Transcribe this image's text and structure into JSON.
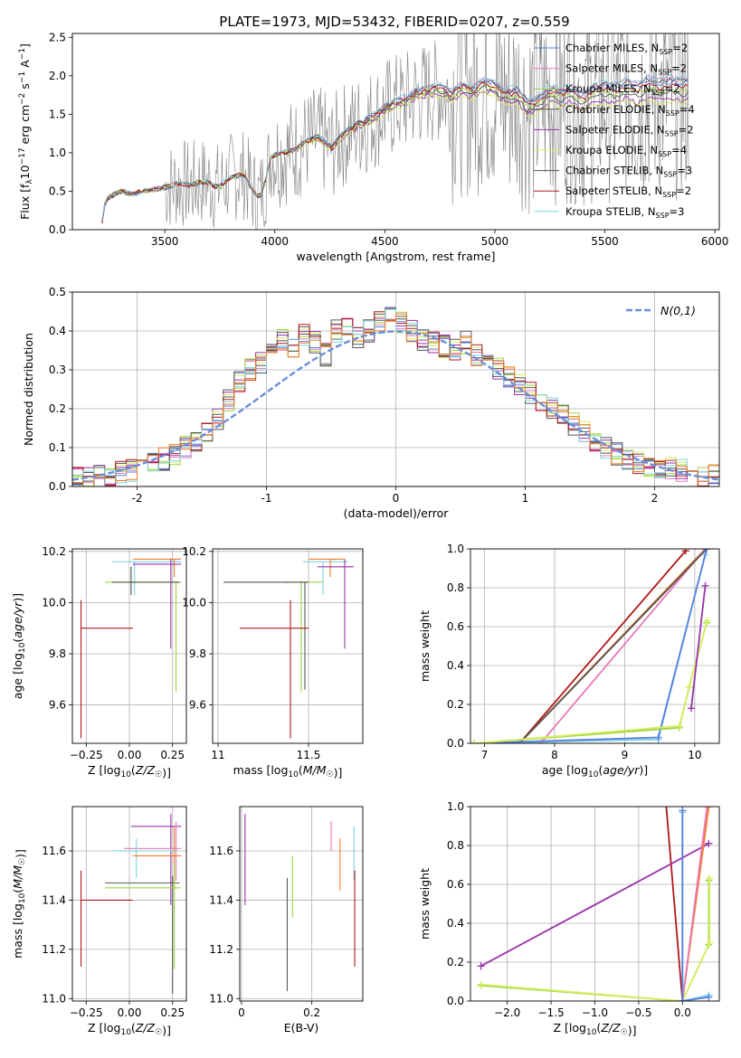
{
  "figure": {
    "title": "PLATE=1973, MJD=53432, FIBERID=0207, z=0.559"
  },
  "colors": {
    "cm": "#5b7ee0",
    "sm": "#e87ab9",
    "km": "#9cd53c",
    "ce": "#555555",
    "se": "#9932a8",
    "ke": "#d8ee62",
    "cs": "#555555",
    "ss": "#b01818",
    "ks": "#7fd2e0",
    "obs": "#808080",
    "orange": "#f07a28",
    "normal": "#6a8fda"
  },
  "chart_data": [
    {
      "id": "spectrum",
      "type": "line",
      "xlabel": "wavelength [Angstrom, rest frame]",
      "ylabel": "Flux [f_λ 10^-17 erg cm^-2 s^-1 A^-1]",
      "xlim": [
        3080,
        6020
      ],
      "ylim": [
        0,
        2.55
      ],
      "xticks": [
        3500,
        4000,
        4500,
        5000,
        5500,
        6000
      ],
      "yticks": [
        0.0,
        0.5,
        1.0,
        1.5,
        2.0,
        2.5
      ],
      "model_continuum": [
        [
          3210,
          0.02
        ],
        [
          3230,
          0.38
        ],
        [
          3260,
          0.44
        ],
        [
          3300,
          0.5
        ],
        [
          3350,
          0.46
        ],
        [
          3400,
          0.5
        ],
        [
          3450,
          0.52
        ],
        [
          3500,
          0.55
        ],
        [
          3560,
          0.6
        ],
        [
          3620,
          0.58
        ],
        [
          3680,
          0.63
        ],
        [
          3740,
          0.55
        ],
        [
          3800,
          0.68
        ],
        [
          3860,
          0.72
        ],
        [
          3900,
          0.5
        ],
        [
          3930,
          0.42
        ],
        [
          3960,
          0.65
        ],
        [
          3980,
          0.95
        ],
        [
          4020,
          0.98
        ],
        [
          4100,
          1.05
        ],
        [
          4150,
          1.15
        ],
        [
          4200,
          1.18
        ],
        [
          4260,
          1.05
        ],
        [
          4300,
          1.2
        ],
        [
          4350,
          1.3
        ],
        [
          4400,
          1.38
        ],
        [
          4450,
          1.45
        ],
        [
          4500,
          1.55
        ],
        [
          4550,
          1.62
        ],
        [
          4600,
          1.66
        ],
        [
          4650,
          1.75
        ],
        [
          4700,
          1.78
        ],
        [
          4750,
          1.8
        ],
        [
          4800,
          1.7
        ],
        [
          4850,
          1.82
        ],
        [
          4900,
          1.75
        ],
        [
          4950,
          1.85
        ],
        [
          5000,
          1.8
        ],
        [
          5050,
          1.7
        ],
        [
          5100,
          1.72
        ],
        [
          5150,
          1.55
        ],
        [
          5200,
          1.6
        ],
        [
          5250,
          1.72
        ],
        [
          5300,
          1.68
        ],
        [
          5350,
          1.72
        ],
        [
          5400,
          1.62
        ],
        [
          5450,
          1.72
        ],
        [
          5500,
          1.75
        ],
        [
          5550,
          1.72
        ],
        [
          5600,
          1.78
        ],
        [
          5650,
          1.72
        ],
        [
          5700,
          1.8
        ],
        [
          5750,
          1.75
        ],
        [
          5800,
          1.78
        ],
        [
          5850,
          1.75
        ],
        [
          5880,
          1.78
        ]
      ],
      "model_offsets": [
        0.15,
        0.2,
        0.05,
        0.0,
        -0.08,
        -0.12,
        0.18,
        0.1,
        0.22
      ],
      "legend_position": "upper right",
      "legend": [
        {
          "label": "Chabrier MILES, N",
          "sub": "SSP",
          "tail": "=2",
          "color": "cm"
        },
        {
          "label": "Salpeter MILES, N",
          "sub": "SSP",
          "tail": "=2",
          "color": "sm"
        },
        {
          "label": "Kroupa MILES, N",
          "sub": "SSP",
          "tail": "=2",
          "color": "km"
        },
        {
          "label": "Chabrier ELODIE, N",
          "sub": "SSP",
          "tail": "=4",
          "color": "ce"
        },
        {
          "label": "Salpeter ELODIE, N",
          "sub": "SSP",
          "tail": "=2",
          "color": "se"
        },
        {
          "label": "Kroupa ELODIE, N",
          "sub": "SSP",
          "tail": "=4",
          "color": "ke"
        },
        {
          "label": "Chabrier STELIB, N",
          "sub": "SSP",
          "tail": "=3",
          "color": "cs"
        },
        {
          "label": "Salpeter STELIB, N",
          "sub": "SSP",
          "tail": "=2",
          "color": "ss"
        },
        {
          "label": "Kroupa STELIB, N",
          "sub": "SSP",
          "tail": "=3",
          "color": "ks"
        }
      ]
    },
    {
      "id": "residuals",
      "type": "histogram",
      "xlabel": "(data-model)/error",
      "ylabel": "Normed distribution",
      "xlim": [
        -2.5,
        2.5
      ],
      "ylim": [
        0,
        0.5
      ],
      "xticks": [
        -2,
        -1,
        0,
        1,
        2
      ],
      "yticks": [
        0.0,
        0.1,
        0.2,
        0.3,
        0.4,
        0.5
      ],
      "grid": true,
      "bin_width": 0.1,
      "base_heights": [
        0.02,
        0.02,
        0.025,
        0.03,
        0.035,
        0.04,
        0.05,
        0.06,
        0.07,
        0.08,
        0.1,
        0.12,
        0.14,
        0.17,
        0.22,
        0.27,
        0.3,
        0.32,
        0.34,
        0.38,
        0.36,
        0.39,
        0.37,
        0.34,
        0.4,
        0.41,
        0.38,
        0.4,
        0.42,
        0.44,
        0.42,
        0.4,
        0.38,
        0.37,
        0.36,
        0.35,
        0.37,
        0.34,
        0.33,
        0.3,
        0.28,
        0.26,
        0.24,
        0.22,
        0.2,
        0.18,
        0.16,
        0.14,
        0.12,
        0.1,
        0.085,
        0.07,
        0.06,
        0.05,
        0.05,
        0.045,
        0.04,
        0.04,
        0.03,
        0.03
      ],
      "normal_label": "N(0,1)",
      "legend_position": "upper right"
    },
    {
      "id": "age_vs_Z",
      "type": "errorbar",
      "xlabel": "Z [log10(Z/Z☉)]",
      "ylabel": "age  [log10(age/yr)]",
      "xlim": [
        -0.33,
        0.33
      ],
      "ylim": [
        9.45,
        10.21
      ],
      "xticks": [
        -0.25,
        0.0,
        0.25
      ],
      "xtick_labels": [
        "−0.25",
        "0.00",
        "0.25"
      ],
      "yticks": [
        9.6,
        9.8,
        10.0,
        10.2
      ],
      "grid": true,
      "points": [
        {
          "x": 0.03,
          "y": 10.16,
          "xlo": -0.1,
          "xhi": 0.3,
          "ylo": 10.03,
          "yhi": 10.16,
          "color": "ks"
        },
        {
          "x": 0.26,
          "y": 10.17,
          "xlo": 0.02,
          "xhi": 0.3,
          "ylo": 10.1,
          "yhi": 10.17,
          "color": "orange"
        },
        {
          "x": 0.24,
          "y": 10.15,
          "xlo": 0.02,
          "xhi": 0.3,
          "ylo": 9.82,
          "yhi": 10.17,
          "color": "se"
        },
        {
          "x": 0.27,
          "y": 10.08,
          "xlo": -0.14,
          "xhi": 0.3,
          "ylo": 9.65,
          "yhi": 10.08,
          "color": "km"
        },
        {
          "x": 0.01,
          "y": 10.08,
          "xlo": -0.1,
          "xhi": 0.29,
          "ylo": 10.03,
          "yhi": 10.14,
          "color": "ce"
        },
        {
          "x": -0.28,
          "y": 9.9,
          "xlo": -0.28,
          "xhi": 0.02,
          "ylo": 9.47,
          "yhi": 10.01,
          "color": "ss"
        }
      ]
    },
    {
      "id": "age_vs_mass",
      "type": "errorbar",
      "xlabel": "mass [log10(M/M☉)]",
      "ylabel": "",
      "xlim": [
        10.97,
        11.8
      ],
      "ylim": [
        9.45,
        10.21
      ],
      "xticks": [
        11.0,
        11.5
      ],
      "yticks": [
        9.6,
        9.8,
        10.0,
        10.2
      ],
      "grid": true,
      "points": [
        {
          "x": 11.58,
          "y": 10.16,
          "xlo": 11.47,
          "xhi": 11.72,
          "ylo": 10.03,
          "yhi": 10.16,
          "color": "ks"
        },
        {
          "x": 11.62,
          "y": 10.17,
          "xlo": 11.5,
          "xhi": 11.7,
          "ylo": 10.1,
          "yhi": 10.17,
          "color": "orange"
        },
        {
          "x": 11.7,
          "y": 10.14,
          "xlo": 11.55,
          "xhi": 11.75,
          "ylo": 9.82,
          "yhi": 10.17,
          "color": "se"
        },
        {
          "x": 11.46,
          "y": 10.08,
          "xlo": 11.37,
          "xhi": 11.58,
          "ylo": 9.65,
          "yhi": 10.08,
          "color": "km"
        },
        {
          "x": 11.48,
          "y": 10.08,
          "xlo": 11.03,
          "xhi": 11.5,
          "ylo": 9.66,
          "yhi": 10.08,
          "color": "ce"
        },
        {
          "x": 11.4,
          "y": 9.9,
          "xlo": 11.12,
          "xhi": 11.5,
          "ylo": 9.47,
          "yhi": 10.01,
          "color": "ss"
        }
      ]
    },
    {
      "id": "massweight_vs_age",
      "type": "line",
      "xlabel": "age  [log10(age/yr)]",
      "ylabel": "mass weight",
      "xlim": [
        6.8,
        10.35
      ],
      "ylim": [
        0,
        1.0
      ],
      "xticks": [
        7,
        8,
        9,
        10
      ],
      "yticks": [
        0.0,
        0.2,
        0.4,
        0.6,
        0.8,
        1.0
      ],
      "grid": true,
      "series": [
        {
          "color": "ss",
          "pts": [
            [
              7.5,
              0.0
            ],
            [
              9.87,
              0.99
            ]
          ]
        },
        {
          "color": "orange",
          "pts": [
            [
              7.5,
              0.0
            ],
            [
              10.15,
              1.0
            ]
          ]
        },
        {
          "color": "sm",
          "pts": [
            [
              7.8,
              0.0
            ],
            [
              10.15,
              1.0
            ]
          ]
        },
        {
          "color": "ce",
          "pts": [
            [
              7.5,
              0.0
            ],
            [
              10.17,
              1.0
            ]
          ]
        },
        {
          "color": "ks",
          "pts": [
            [
              6.85,
              0.0
            ],
            [
              9.48,
              0.02
            ],
            [
              10.15,
              0.97
            ]
          ]
        },
        {
          "color": "cm",
          "pts": [
            [
              6.85,
              0.0
            ],
            [
              9.48,
              0.03
            ],
            [
              10.17,
              1.0
            ]
          ]
        },
        {
          "color": "km",
          "pts": [
            [
              6.85,
              0.0
            ],
            [
              9.78,
              0.08
            ],
            [
              9.92,
              0.29
            ],
            [
              10.17,
              0.62
            ]
          ]
        },
        {
          "color": "ke",
          "pts": [
            [
              6.85,
              0.0
            ],
            [
              9.78,
              0.09
            ],
            [
              9.92,
              0.29
            ],
            [
              10.18,
              0.63
            ]
          ]
        },
        {
          "color": "se",
          "pts": [
            [
              9.95,
              0.18
            ],
            [
              10.15,
              0.81
            ]
          ]
        }
      ]
    },
    {
      "id": "mass_vs_Z",
      "type": "errorbar",
      "xlabel": "Z [log10(Z/Z☉)]",
      "ylabel": "mass [log10(M/M☉)]",
      "xlim": [
        -0.33,
        0.33
      ],
      "ylim": [
        10.99,
        11.78
      ],
      "xticks": [
        -0.25,
        0.0,
        0.25
      ],
      "xtick_labels": [
        "−0.25",
        "0.00",
        "0.25"
      ],
      "yticks": [
        11.0,
        11.2,
        11.4,
        11.6
      ],
      "grid": true,
      "points": [
        {
          "x": 0.24,
          "y": 11.7,
          "xlo": 0.01,
          "xhi": 0.3,
          "ylo": 11.38,
          "yhi": 11.75,
          "color": "se"
        },
        {
          "x": 0.27,
          "y": 11.61,
          "xlo": -0.03,
          "xhi": 0.3,
          "ylo": 11.48,
          "yhi": 11.72,
          "color": "sm"
        },
        {
          "x": 0.04,
          "y": 11.6,
          "xlo": -0.1,
          "xhi": 0.28,
          "ylo": 11.49,
          "yhi": 11.65,
          "color": "ks"
        },
        {
          "x": 0.26,
          "y": 11.58,
          "xlo": 0.02,
          "xhi": 0.3,
          "ylo": 11.45,
          "yhi": 11.7,
          "color": "orange"
        },
        {
          "x": 0.25,
          "y": 11.47,
          "xlo": -0.14,
          "xhi": 0.29,
          "ylo": 11.02,
          "yhi": 11.5,
          "color": "ce"
        },
        {
          "x": 0.26,
          "y": 11.45,
          "xlo": -0.14,
          "xhi": 0.3,
          "ylo": 11.12,
          "yhi": 11.55,
          "color": "km"
        },
        {
          "x": -0.28,
          "y": 11.4,
          "xlo": -0.28,
          "xhi": 0.02,
          "ylo": 11.13,
          "yhi": 11.52,
          "color": "ss"
        }
      ]
    },
    {
      "id": "mass_vs_ebv",
      "type": "errorbar",
      "xlabel": "E(B-V)",
      "ylabel": "",
      "xlim": [
        -0.005,
        0.345
      ],
      "ylim": [
        10.99,
        11.78
      ],
      "xticks": [
        0.0,
        0.2
      ],
      "yticks": [
        11.0,
        11.2,
        11.4,
        11.6
      ],
      "grid": true,
      "points": [
        {
          "x": 0.01,
          "y": 11.57,
          "ylo": 11.38,
          "yhi": 11.75,
          "color": "se"
        },
        {
          "x": 0.13,
          "y": 11.27,
          "ylo": 11.03,
          "yhi": 11.49,
          "color": "ce"
        },
        {
          "x": 0.145,
          "y": 11.45,
          "ylo": 11.33,
          "yhi": 11.58,
          "color": "km"
        },
        {
          "x": 0.255,
          "y": 11.66,
          "ylo": 11.6,
          "yhi": 11.72,
          "color": "sm"
        },
        {
          "x": 0.28,
          "y": 11.57,
          "ylo": 11.44,
          "yhi": 11.65,
          "color": "orange"
        },
        {
          "x": 0.32,
          "y": 11.6,
          "ylo": 11.48,
          "yhi": 11.7,
          "color": "ks"
        },
        {
          "x": 0.322,
          "y": 11.32,
          "ylo": 11.13,
          "yhi": 11.52,
          "color": "ss"
        }
      ]
    },
    {
      "id": "massweight_vs_Z",
      "type": "line",
      "xlabel": "Z [log10(Z/Z☉)]",
      "ylabel": "mass weight",
      "xlim": [
        -2.42,
        0.42
      ],
      "ylim": [
        0,
        1.0
      ],
      "xticks": [
        -2.0,
        -1.5,
        -1.0,
        -0.5,
        0.0
      ],
      "xtick_labels": [
        "−2.0",
        "−1.5",
        "−1.0",
        "−0.5",
        "0.0"
      ],
      "yticks": [
        0.0,
        0.2,
        0.4,
        0.6,
        0.8,
        1.0
      ],
      "grid": true,
      "series": [
        {
          "color": "ss",
          "pts": [
            [
              -0.2,
              1.08
            ],
            [
              0.0,
              0.0
            ]
          ]
        },
        {
          "color": "se",
          "pts": [
            [
              -2.3,
              0.18
            ],
            [
              0.3,
              0.81
            ]
          ]
        },
        {
          "color": "km",
          "pts": [
            [
              -2.3,
              0.08
            ],
            [
              0.0,
              0.0
            ],
            [
              0.3,
              0.29
            ],
            [
              0.3,
              0.62
            ]
          ]
        },
        {
          "color": "ke",
          "pts": [
            [
              -2.3,
              0.085
            ],
            [
              0.0,
              0.0
            ],
            [
              0.31,
              0.3
            ],
            [
              0.31,
              0.63
            ]
          ]
        },
        {
          "color": "orange",
          "pts": [
            [
              0.0,
              0.0
            ],
            [
              0.3,
              1.0
            ]
          ]
        },
        {
          "color": "sm",
          "pts": [
            [
              0.0,
              0.0
            ],
            [
              0.28,
              1.0
            ]
          ]
        },
        {
          "color": "ks",
          "pts": [
            [
              0.0,
              0.97
            ],
            [
              0.0,
              0.0
            ],
            [
              0.3,
              0.03
            ]
          ]
        },
        {
          "color": "cm",
          "pts": [
            [
              0.0,
              0.98
            ],
            [
              0.0,
              0.0
            ],
            [
              0.3,
              0.02
            ]
          ]
        }
      ]
    }
  ]
}
